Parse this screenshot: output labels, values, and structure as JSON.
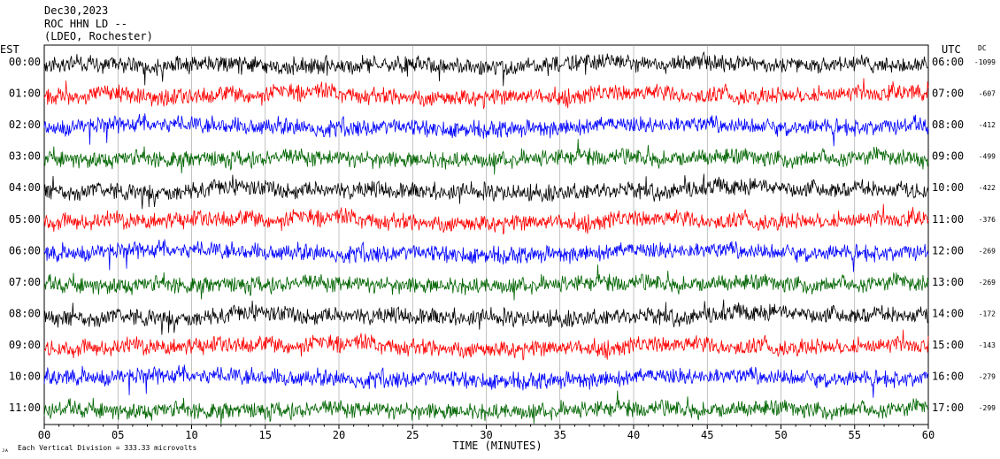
{
  "header": {
    "date": "Dec30,2023",
    "station": "ROC HHN LD --",
    "network": "(LDEO, Rochester)"
  },
  "labels": {
    "left_zone": "EST",
    "right_zone": "UTC",
    "dc": "DC",
    "xlabel": "TIME (MINUTES)",
    "footer": "Each Vertical Division =  333.33 microvolts",
    "corner": "ᴊᴀ"
  },
  "chart_data": {
    "type": "line",
    "title": "Dec30,2023",
    "subtitle": "ROC HHN LD -- (LDEO, Rochester)",
    "xlabel": "TIME (MINUTES)",
    "ylabel": "",
    "xlim": [
      0,
      60
    ],
    "x_ticks": [
      "00",
      "05",
      "10",
      "15",
      "20",
      "25",
      "30",
      "35",
      "40",
      "45",
      "50",
      "55",
      "60"
    ],
    "rows_est": [
      "00:00",
      "01:00",
      "02:00",
      "03:00",
      "04:00",
      "05:00",
      "06:00",
      "07:00",
      "08:00",
      "09:00",
      "10:00",
      "11:00"
    ],
    "rows_utc": [
      "06:00",
      "07:00",
      "08:00",
      "09:00",
      "10:00",
      "11:00",
      "12:00",
      "13:00",
      "14:00",
      "15:00",
      "16:00",
      "17:00"
    ],
    "dc_offsets": [
      "-1099",
      "-607",
      "-412",
      "-499",
      "-422",
      "-376",
      "-269",
      "-269",
      "-172",
      "-143",
      "-279",
      "-299"
    ],
    "row_colors": [
      "#000000",
      "#ff0000",
      "#0000ff",
      "#006400",
      "#000000",
      "#ff0000",
      "#0000ff",
      "#006400",
      "#000000",
      "#ff0000",
      "#0000ff",
      "#006400"
    ],
    "grid": true,
    "scale": "Each Vertical Division =  333.33 microvolts"
  }
}
